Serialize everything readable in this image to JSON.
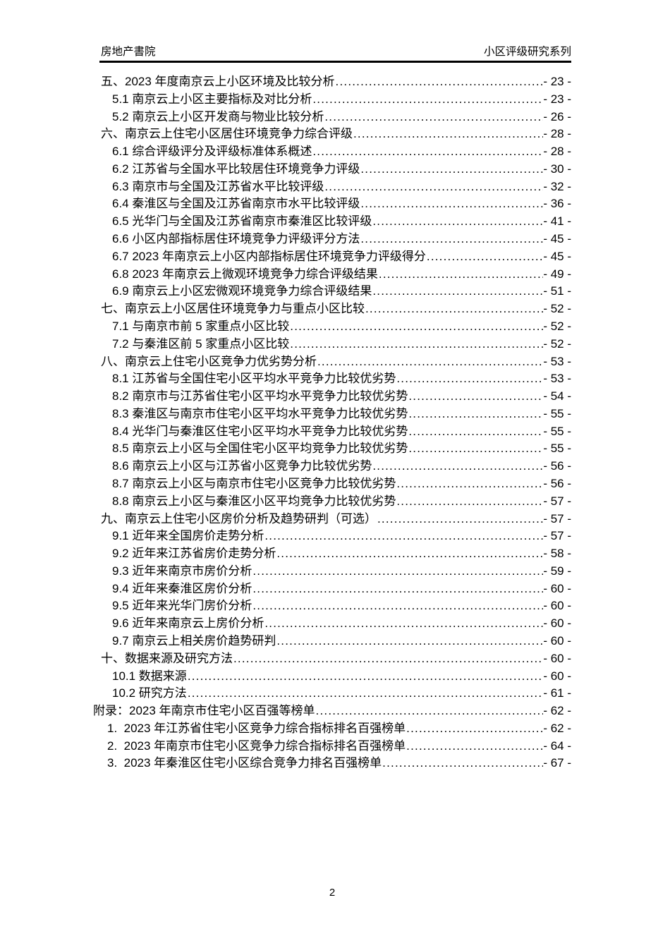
{
  "header": {
    "left": "房地产書院",
    "right": "小区评级研究系列"
  },
  "toc": {
    "entries": [
      {
        "level": "chapter",
        "label": "五、2023 年度南京云上小区环境及比较分析",
        "page": "- 23 -"
      },
      {
        "level": "sub",
        "label": "5.1 南京云上小区主要指标及对比分析",
        "page": "- 23 -"
      },
      {
        "level": "sub",
        "label": "5.2 南京云上小区开发商与物业比较分析",
        "page": "- 26 -"
      },
      {
        "level": "chapter",
        "label": "六、南京云上住宅小区居住环境竞争力综合评级",
        "page": "- 28 -"
      },
      {
        "level": "sub",
        "label": "6.1 综合评级评分及评级标准体系概述",
        "page": "- 28 -"
      },
      {
        "level": "sub",
        "label": "6.2 江苏省与全国水平比较居住环境竞争力评级",
        "page": "- 30 -"
      },
      {
        "level": "sub",
        "label": "6.3 南京市与全国及江苏省水平比较评级",
        "page": "- 32 -"
      },
      {
        "level": "sub",
        "label": "6.4 秦淮区与全国及江苏省南京市水平比较评级",
        "page": "- 36 -"
      },
      {
        "level": "sub",
        "label": "6.5 光华门与全国及江苏省南京市秦淮区比较评级",
        "page": "- 41 -"
      },
      {
        "level": "sub",
        "label": "6.6 小区内部指标居住环境竞争力评级评分方法",
        "page": "- 45 -"
      },
      {
        "level": "sub",
        "label": "6.7 2023 年南京云上小区内部指标居住环境竞争力评级得分",
        "page": "- 45 -"
      },
      {
        "level": "sub",
        "label": "6.8 2023 年南京云上微观环境竞争力综合评级结果",
        "page": "- 49 -"
      },
      {
        "level": "sub",
        "label": "6.9 南京云上小区宏微观环境竞争力综合评级结果",
        "page": "- 51 -"
      },
      {
        "level": "chapter",
        "label": "七、南京云上小区居住环境竞争力与重点小区比较",
        "page": "- 52 -"
      },
      {
        "level": "sub",
        "label": "7.1 与南京市前 5 家重点小区比较",
        "page": "- 52 -"
      },
      {
        "level": "sub",
        "label": "7.2 与秦淮区前 5 家重点小区比较",
        "page": "- 52 -"
      },
      {
        "level": "chapter",
        "label": "八、南京云上住宅小区竞争力优劣势分析",
        "page": "- 53 -"
      },
      {
        "level": "sub",
        "label": "8.1 江苏省与全国住宅小区平均水平竞争力比较优劣势",
        "page": "- 53 -"
      },
      {
        "level": "sub",
        "label": "8.2 南京市与江苏省住宅小区平均水平竞争力比较优劣势",
        "page": "- 54 -"
      },
      {
        "level": "sub",
        "label": "8.3 秦淮区与南京市住宅小区平均水平竞争力比较优劣势",
        "page": "- 55 -"
      },
      {
        "level": "sub",
        "label": "8.4 光华门与秦淮区住宅小区平均水平竞争力比较优劣势",
        "page": "- 55 -"
      },
      {
        "level": "sub",
        "label": "8.5 南京云上小区与全国住宅小区平均竞争力比较优劣势",
        "page": "- 55 -"
      },
      {
        "level": "sub",
        "label": "8.6 南京云上小区与江苏省小区竞争力比较优劣势",
        "page": "- 56 -"
      },
      {
        "level": "sub",
        "label": "8.7 南京云上小区与南京市住宅小区竞争力比较优劣势",
        "page": "- 56 -"
      },
      {
        "level": "sub",
        "label": "8.8 南京云上小区与秦淮区小区平均竞争力比较优劣势",
        "page": "- 57 -"
      },
      {
        "level": "chapter",
        "label": "九、南京云上住宅小区房价分析及趋势研判（可选）",
        "page": "- 57 -"
      },
      {
        "level": "sub",
        "label": "9.1 近年来全国房价走势分析",
        "page": "- 57 -"
      },
      {
        "level": "sub",
        "label": "9.2 近年来江苏省房价走势分析",
        "page": "- 58 -"
      },
      {
        "level": "sub",
        "label": "9.3 近年来南京市房价分析",
        "page": "- 59 -"
      },
      {
        "level": "sub",
        "label": "9.4 近年来秦淮区房价分析",
        "page": "- 60 -"
      },
      {
        "level": "sub",
        "label": "9.5 近年来光华门房价分析",
        "page": "- 60 -"
      },
      {
        "level": "sub",
        "label": "9.6 近年来南京云上房价分析",
        "page": "- 60 -"
      },
      {
        "level": "sub",
        "label": "9.7 南京云上相关房价趋势研判",
        "page": "- 60 -"
      },
      {
        "level": "chapter",
        "label": "十、数据来源及研究方法",
        "page": "- 60 -"
      },
      {
        "level": "sub",
        "label": "10.1 数据来源",
        "page": "- 60 -"
      },
      {
        "level": "sub",
        "label": "10.2 研究方法",
        "page": "- 61 -"
      },
      {
        "level": "appendix",
        "label": "附录：2023 年南京市住宅小区百强等榜单",
        "page": "- 62 -"
      },
      {
        "level": "appendix-item",
        "label": "1.  2023 年江苏省住宅小区竞争力综合指标排名百强榜单",
        "page": "- 62 -"
      },
      {
        "level": "appendix-item",
        "label": "2.  2023 年南京市住宅小区竞争力综合指标排名百强榜单",
        "page": "- 64 -"
      },
      {
        "level": "appendix-item",
        "label": "3.  2023 年秦淮区住宅小区综合竞争力排名百强榜单",
        "page": "- 67 -"
      }
    ]
  },
  "footer": {
    "page_number": "2"
  }
}
